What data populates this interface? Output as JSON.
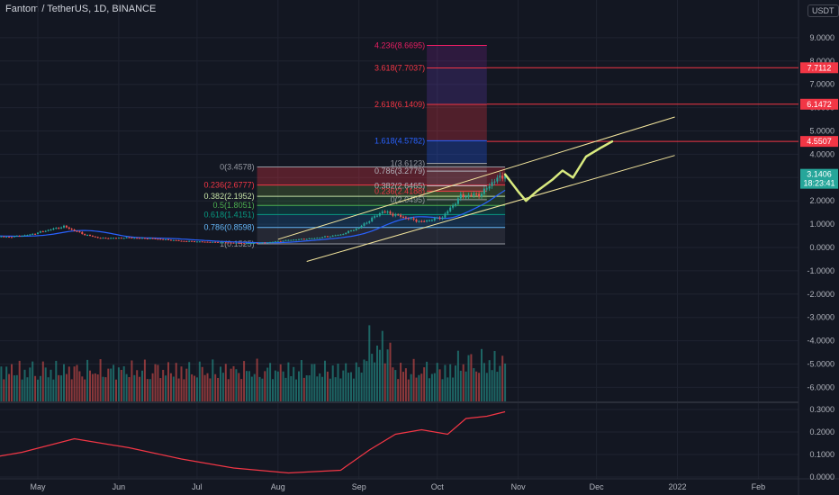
{
  "header": {
    "title": "Fantom / TetherUS, 1D, BINANCE",
    "unit": "USDT"
  },
  "chart_data": [
    {
      "type": "candlestick",
      "title": "Fantom / TetherUS, 1D, BINANCE",
      "ylim": [
        -6.5,
        9.5
      ],
      "y_ticks": [
        "9.0000",
        "8.0000",
        "7.0000",
        "6.0000",
        "5.0000",
        "4.0000",
        "3.0000",
        "2.0000",
        "1.0000",
        "0.0000",
        "-1.0000",
        "-2.0000",
        "-3.0000",
        "-4.0000",
        "-5.0000",
        "-6.0000"
      ],
      "x_ticks": [
        "May",
        "Jun",
        "Jul",
        "Aug",
        "Sep",
        "Oct",
        "Nov",
        "Dec",
        "2022",
        "Feb"
      ],
      "price_path": [
        {
          "date": "2021-04-10",
          "price": 0.5
        },
        {
          "date": "2021-04-20",
          "price": 0.45
        },
        {
          "date": "2021-04-28",
          "price": 0.55
        },
        {
          "date": "2021-05-05",
          "price": 0.75
        },
        {
          "date": "2021-05-11",
          "price": 0.9
        },
        {
          "date": "2021-05-19",
          "price": 0.55
        },
        {
          "date": "2021-05-25",
          "price": 0.4
        },
        {
          "date": "2021-06-05",
          "price": 0.42
        },
        {
          "date": "2021-06-15",
          "price": 0.38
        },
        {
          "date": "2021-06-25",
          "price": 0.28
        },
        {
          "date": "2021-07-05",
          "price": 0.24
        },
        {
          "date": "2021-07-20",
          "price": 0.18
        },
        {
          "date": "2021-07-28",
          "price": 0.22
        },
        {
          "date": "2021-08-05",
          "price": 0.32
        },
        {
          "date": "2021-08-15",
          "price": 0.4
        },
        {
          "date": "2021-08-25",
          "price": 0.55
        },
        {
          "date": "2021-09-01",
          "price": 0.85
        },
        {
          "date": "2021-09-10",
          "price": 1.55
        },
        {
          "date": "2021-09-18",
          "price": 1.3
        },
        {
          "date": "2021-09-25",
          "price": 1.1
        },
        {
          "date": "2021-10-03",
          "price": 1.3
        },
        {
          "date": "2021-10-10",
          "price": 2.2
        },
        {
          "date": "2021-10-18",
          "price": 2.3
        },
        {
          "date": "2021-10-22",
          "price": 2.8
        },
        {
          "date": "2021-10-27",
          "price": 3.14
        }
      ],
      "projection_path": [
        {
          "date": "2021-10-27",
          "price": 3.14
        },
        {
          "date": "2021-11-01",
          "price": 2.4
        },
        {
          "date": "2021-11-04",
          "price": 2.0
        },
        {
          "date": "2021-11-08",
          "price": 2.4
        },
        {
          "date": "2021-11-14",
          "price": 2.9
        },
        {
          "date": "2021-11-18",
          "price": 3.3
        },
        {
          "date": "2021-11-22",
          "price": 3.0
        },
        {
          "date": "2021-11-27",
          "price": 3.9
        },
        {
          "date": "2021-12-03",
          "price": 4.3
        },
        {
          "date": "2021-12-07",
          "price": 4.55
        }
      ],
      "fib_retracement": [
        {
          "label": "0(3.4578)",
          "level": 3.4578,
          "color": "#9598a1"
        },
        {
          "label": "0.236(2.6777)",
          "level": 2.6777,
          "color": "#f23645"
        },
        {
          "label": "0.382(2.1952)",
          "level": 2.1952,
          "color": "#c5e1a5"
        },
        {
          "label": "0.5(1.8051)",
          "level": 1.8051,
          "color": "#4caf50"
        },
        {
          "label": "0.618(1.4151)",
          "level": 1.4151,
          "color": "#089981"
        },
        {
          "label": "0.786(0.8598)",
          "level": 0.8598,
          "color": "#64b5f6"
        },
        {
          "label": "1(0.1525)",
          "level": 0.1525,
          "color": "#9598a1"
        }
      ],
      "fib_extension": [
        {
          "label": "1(3.6123)",
          "level": 3.6123,
          "color": "#9598a1"
        },
        {
          "label": "0.786(3.2779)",
          "level": 3.2779,
          "color": "#b2b5be"
        },
        {
          "label": "0.382(2.6465)",
          "level": 2.6465,
          "color": "#b2b5be"
        },
        {
          "label": "0.236(2.4188)",
          "level": 2.4188,
          "color": "#f23645"
        },
        {
          "label": "0(2.0495)",
          "level": 2.0495,
          "color": "#9598a1"
        },
        {
          "label": "1.618(4.5782)",
          "level": 4.5782,
          "color": "#2962ff"
        },
        {
          "label": "2.618(6.1409)",
          "level": 6.1409,
          "color": "#f23645"
        },
        {
          "label": "3.618(7.7037)",
          "level": 7.7037,
          "color": "#f23645"
        },
        {
          "label": "4.236(8.6695)",
          "level": 8.6695,
          "color": "#e91e63"
        }
      ],
      "price_tags": [
        {
          "value": "7.7112",
          "level": 7.7112,
          "color": "#f23645"
        },
        {
          "value": "6.1472",
          "level": 6.1472,
          "color": "#f23645"
        },
        {
          "value": "4.5507",
          "level": 4.5507,
          "color": "#f23645"
        },
        {
          "value": "3.1406",
          "level": 3.1406,
          "color": "#26a69a",
          "sub": "18:23:41"
        }
      ],
      "colors": {
        "up": "#26a69a",
        "down": "#ef5350",
        "channel": "#f5e79e",
        "projection": "#d9ea7f",
        "ma": "#2962ff"
      }
    },
    {
      "type": "line",
      "ylim": [
        0,
        0.32
      ],
      "y_ticks": [
        "0.3000",
        "0.2000",
        "0.1000",
        "0.0000"
      ],
      "series_color": "#f23645",
      "points": [
        {
          "date": "2021-04-10",
          "value": 0.08
        },
        {
          "date": "2021-04-25",
          "value": 0.11
        },
        {
          "date": "2021-05-15",
          "value": 0.17
        },
        {
          "date": "2021-06-05",
          "value": 0.13
        },
        {
          "date": "2021-06-25",
          "value": 0.08
        },
        {
          "date": "2021-07-15",
          "value": 0.04
        },
        {
          "date": "2021-08-05",
          "value": 0.018
        },
        {
          "date": "2021-08-25",
          "value": 0.03
        },
        {
          "date": "2021-09-05",
          "value": 0.12
        },
        {
          "date": "2021-09-15",
          "value": 0.19
        },
        {
          "date": "2021-09-25",
          "value": 0.21
        },
        {
          "date": "2021-10-05",
          "value": 0.19
        },
        {
          "date": "2021-10-12",
          "value": 0.26
        },
        {
          "date": "2021-10-20",
          "value": 0.27
        },
        {
          "date": "2021-10-27",
          "value": 0.29
        }
      ]
    }
  ]
}
